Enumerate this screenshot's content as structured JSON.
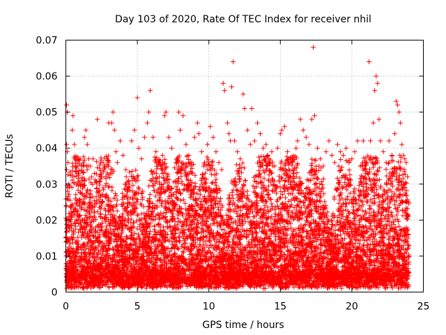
{
  "chart_data": {
    "type": "scatter",
    "title": "Day 103 of 2020, Rate Of TEC Index for receiver nhil",
    "xlabel": "GPS time / hours",
    "ylabel": "ROTI / TECUs",
    "xlim": [
      0,
      25
    ],
    "ylim": [
      0,
      0.07
    ],
    "x_ticks": [
      0,
      5,
      10,
      15,
      20,
      25
    ],
    "x_tick_labels": [
      "0",
      "5",
      "10",
      "15",
      "20",
      "25"
    ],
    "y_ticks": [
      0,
      0.01,
      0.02,
      0.03,
      0.04,
      0.05,
      0.06,
      0.07
    ],
    "y_tick_labels": [
      "0",
      "0.01",
      "0.02",
      "0.03",
      "0.04",
      "0.05",
      "0.06",
      "0.07"
    ],
    "grid": true,
    "marker": "+",
    "marker_color": "#ff0000",
    "series": [
      {
        "name": "ROTI",
        "points": [
          [
            0.05,
            0.052
          ],
          [
            0.1,
            0.05
          ],
          [
            0.05,
            0.041
          ],
          [
            0.1,
            0.039
          ],
          [
            0.15,
            0.036
          ],
          [
            0.05,
            0.034
          ],
          [
            0.2,
            0.03
          ],
          [
            0.1,
            0.026
          ],
          [
            0.5,
            0.049
          ],
          [
            0.45,
            0.045
          ],
          [
            0.6,
            0.041
          ],
          [
            0.7,
            0.037
          ],
          [
            0.8,
            0.035
          ],
          [
            0.9,
            0.033
          ],
          [
            1.0,
            0.037
          ],
          [
            1.1,
            0.031
          ],
          [
            1.3,
            0.043
          ],
          [
            1.4,
            0.045
          ],
          [
            1.5,
            0.041
          ],
          [
            1.6,
            0.037
          ],
          [
            1.7,
            0.035
          ],
          [
            1.8,
            0.032
          ],
          [
            1.9,
            0.037
          ],
          [
            2.0,
            0.033
          ],
          [
            2.2,
            0.048
          ],
          [
            2.3,
            0.028
          ],
          [
            2.5,
            0.032
          ],
          [
            2.6,
            0.029
          ],
          [
            2.8,
            0.027
          ],
          [
            3.0,
            0.047
          ],
          [
            3.2,
            0.047
          ],
          [
            3.3,
            0.05
          ],
          [
            3.4,
            0.045
          ],
          [
            3.5,
            0.039
          ],
          [
            3.6,
            0.036
          ],
          [
            3.8,
            0.042
          ],
          [
            4.0,
            0.038
          ],
          [
            4.2,
            0.034
          ],
          [
            4.4,
            0.031
          ],
          [
            4.6,
            0.042
          ],
          [
            4.8,
            0.045
          ],
          [
            5.0,
            0.054
          ],
          [
            5.1,
            0.04
          ],
          [
            5.3,
            0.037
          ],
          [
            5.5,
            0.043
          ],
          [
            5.7,
            0.047
          ],
          [
            5.8,
            0.05
          ],
          [
            5.9,
            0.056
          ],
          [
            6.1,
            0.043
          ],
          [
            6.3,
            0.039
          ],
          [
            6.5,
            0.036
          ],
          [
            6.7,
            0.034
          ],
          [
            6.9,
            0.049
          ],
          [
            7.0,
            0.05
          ],
          [
            7.2,
            0.043
          ],
          [
            7.4,
            0.04
          ],
          [
            7.7,
            0.036
          ],
          [
            7.9,
            0.05
          ],
          [
            8.0,
            0.045
          ],
          [
            8.2,
            0.049
          ],
          [
            8.4,
            0.041
          ],
          [
            8.6,
            0.038
          ],
          [
            8.8,
            0.036
          ],
          [
            9.0,
            0.043
          ],
          [
            9.2,
            0.047
          ],
          [
            9.3,
            0.044
          ],
          [
            9.5,
            0.039
          ],
          [
            9.7,
            0.036
          ],
          [
            9.9,
            0.041
          ],
          [
            10.1,
            0.046
          ],
          [
            10.3,
            0.043
          ],
          [
            10.5,
            0.039
          ],
          [
            10.7,
            0.036
          ],
          [
            10.9,
            0.034
          ],
          [
            11.0,
            0.058
          ],
          [
            11.1,
            0.056
          ],
          [
            11.3,
            0.047
          ],
          [
            11.4,
            0.044
          ],
          [
            11.5,
            0.042
          ],
          [
            11.6,
            0.057
          ],
          [
            11.7,
            0.064
          ],
          [
            11.8,
            0.042
          ],
          [
            12.0,
            0.039
          ],
          [
            12.2,
            0.037
          ],
          [
            12.4,
            0.055
          ],
          [
            12.5,
            0.051
          ],
          [
            12.7,
            0.045
          ],
          [
            12.9,
            0.041
          ],
          [
            13.0,
            0.051
          ],
          [
            13.2,
            0.042
          ],
          [
            13.4,
            0.047
          ],
          [
            13.6,
            0.044
          ],
          [
            13.8,
            0.04
          ],
          [
            14.0,
            0.041
          ],
          [
            14.2,
            0.037
          ],
          [
            14.4,
            0.039
          ],
          [
            14.6,
            0.035
          ],
          [
            14.8,
            0.04
          ],
          [
            15.0,
            0.044
          ],
          [
            15.1,
            0.045
          ],
          [
            15.3,
            0.046
          ],
          [
            15.5,
            0.039
          ],
          [
            15.7,
            0.036
          ],
          [
            15.9,
            0.034
          ],
          [
            16.1,
            0.04
          ],
          [
            16.2,
            0.042
          ],
          [
            16.4,
            0.048
          ],
          [
            16.6,
            0.045
          ],
          [
            16.8,
            0.043
          ],
          [
            17.0,
            0.041
          ],
          [
            17.2,
            0.048
          ],
          [
            17.3,
            0.068
          ],
          [
            17.4,
            0.049
          ],
          [
            17.6,
            0.04
          ],
          [
            17.8,
            0.037
          ],
          [
            18.0,
            0.035
          ],
          [
            18.2,
            0.039
          ],
          [
            18.4,
            0.042
          ],
          [
            18.6,
            0.038
          ],
          [
            18.8,
            0.036
          ],
          [
            19.0,
            0.041
          ],
          [
            19.2,
            0.039
          ],
          [
            19.4,
            0.038
          ],
          [
            19.6,
            0.04
          ],
          [
            19.8,
            0.036
          ],
          [
            20.0,
            0.037
          ],
          [
            20.2,
            0.039
          ],
          [
            20.4,
            0.042
          ],
          [
            20.6,
            0.035
          ],
          [
            20.8,
            0.042
          ],
          [
            21.0,
            0.036
          ],
          [
            21.1,
            0.033
          ],
          [
            21.2,
            0.064
          ],
          [
            21.3,
            0.042
          ],
          [
            21.5,
            0.047
          ],
          [
            21.6,
            0.056
          ],
          [
            21.7,
            0.06
          ],
          [
            21.8,
            0.058
          ],
          [
            21.9,
            0.048
          ],
          [
            22.0,
            0.042
          ],
          [
            22.2,
            0.039
          ],
          [
            22.4,
            0.036
          ],
          [
            22.6,
            0.042
          ],
          [
            22.8,
            0.038
          ],
          [
            23.0,
            0.044
          ],
          [
            23.1,
            0.053
          ],
          [
            23.2,
            0.052
          ],
          [
            23.3,
            0.05
          ],
          [
            23.4,
            0.047
          ],
          [
            23.5,
            0.041
          ],
          [
            23.6,
            0.038
          ],
          [
            23.7,
            0.037
          ],
          [
            23.8,
            0.036
          ],
          [
            23.9,
            0.032
          ]
        ],
        "dense_band": {
          "x_range": [
            0,
            24
          ],
          "y_floor": 0.001,
          "y_typical_max": 0.03,
          "y_typical_median": 0.009
        }
      }
    ]
  }
}
